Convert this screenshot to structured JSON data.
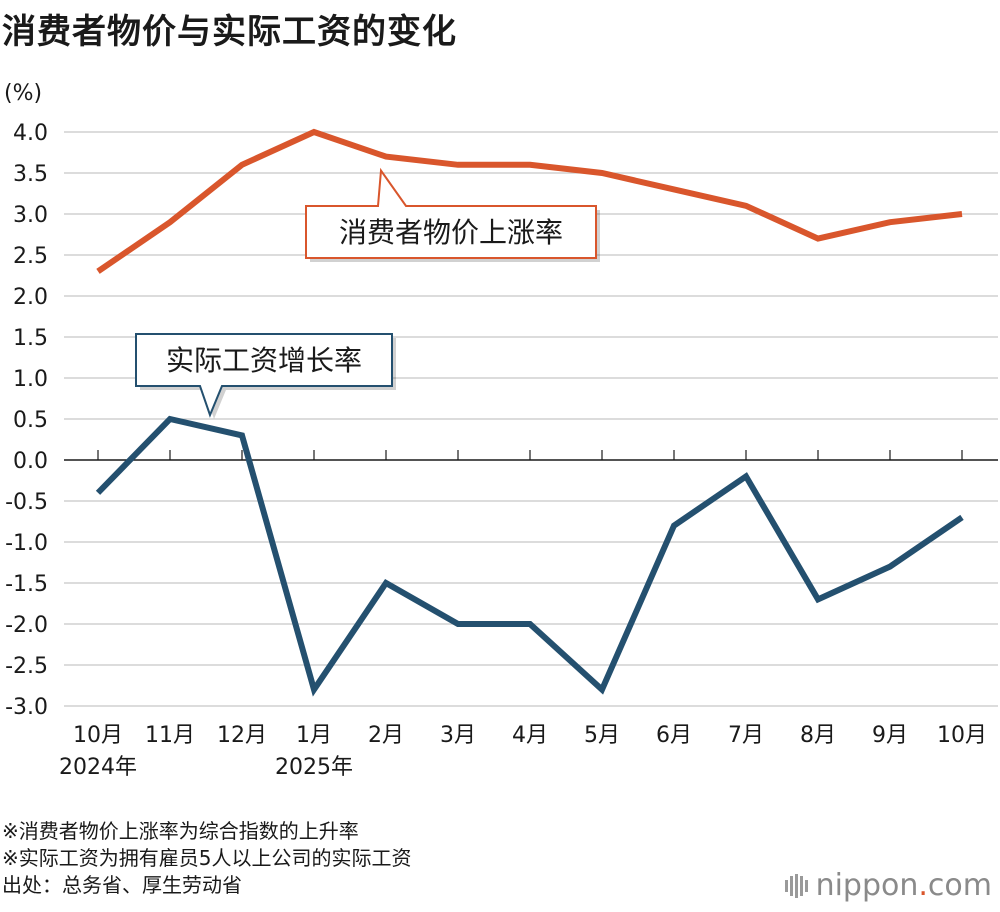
{
  "title": "消费者物价与实际工资的变化",
  "notes": [
    "※消费者物价上涨率为综合指数的上升率",
    "※实际工资为拥有雇员5人以上公司的实际工资",
    "出处：总务省、厚生劳动省"
  ],
  "brand": {
    "name": "nippon",
    "dot": ".",
    "suffix": "com",
    "icon": "bars-logo-icon"
  },
  "chart_data": {
    "type": "line",
    "yunit": "(%)",
    "ylim": [
      -3.0,
      4.0
    ],
    "yticks": [
      "4.0",
      "3.5",
      "3.0",
      "2.5",
      "2.0",
      "1.5",
      "1.0",
      "0.5",
      "0.0",
      "-0.5",
      "-1.0",
      "-1.5",
      "-2.0",
      "-2.5",
      "-3.0"
    ],
    "ytick_values": [
      4.0,
      3.5,
      3.0,
      2.5,
      2.0,
      1.5,
      1.0,
      0.5,
      0.0,
      -0.5,
      -1.0,
      -1.5,
      -2.0,
      -2.5,
      -3.0
    ],
    "categories": [
      "10月",
      "11月",
      "12月",
      "1月",
      "2月",
      "3月",
      "4月",
      "5月",
      "6月",
      "7月",
      "8月",
      "9月",
      "10月"
    ],
    "year_labels": [
      {
        "index": 0,
        "label": "2024年"
      },
      {
        "index": 3,
        "label": "2025年"
      }
    ],
    "grid": true,
    "series": [
      {
        "name": "消费者物价上涨率",
        "color": "#d9562c",
        "values": [
          2.3,
          2.9,
          3.6,
          4.0,
          3.7,
          3.6,
          3.6,
          3.5,
          3.3,
          3.1,
          2.7,
          2.9,
          3.0
        ]
      },
      {
        "name": "实际工资增长率",
        "color": "#24506f",
        "values": [
          -0.4,
          0.5,
          0.3,
          -2.8,
          -1.5,
          -2.0,
          -2.0,
          -2.8,
          -0.8,
          -0.2,
          -1.7,
          -1.3,
          -0.7
        ]
      }
    ]
  }
}
